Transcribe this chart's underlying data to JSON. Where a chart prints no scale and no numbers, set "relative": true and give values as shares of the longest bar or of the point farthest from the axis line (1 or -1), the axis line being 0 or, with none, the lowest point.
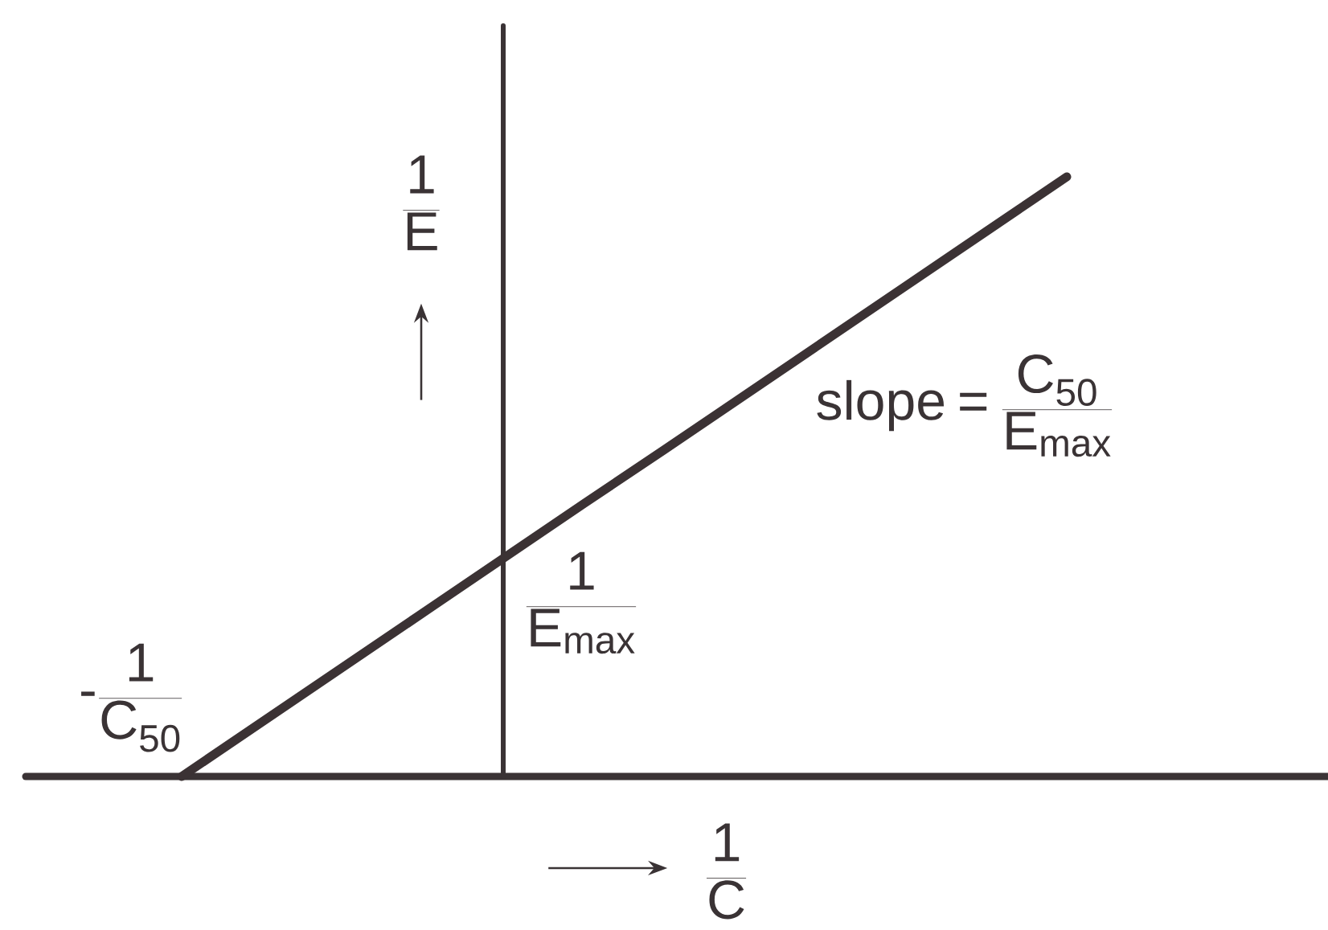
{
  "chart_data": {
    "type": "line",
    "relative": true,
    "categories": [
      null,
      null,
      null,
      null,
      null,
      null,
      null,
      null,
      null,
      null,
      null,
      null
    ],
    "values": [
      0,
      0.091,
      0.182,
      0.273,
      0.364,
      0.455,
      0.545,
      0.636,
      0.727,
      0.818,
      0.909,
      1
    ],
    "color": "#3b3234",
    "marker": "none",
    "line_style": "solid",
    "xlabel": "\\frac{1}{C}",
    "ylabel": "\\frac{1}{E}",
    "annotations": [
      "-\\frac{1}{C_{50}}",
      "\\frac{1}{E_{max}}",
      "\\mathrm{slope} = \\frac{C_{50}}{E_{max}}"
    ]
  }
}
